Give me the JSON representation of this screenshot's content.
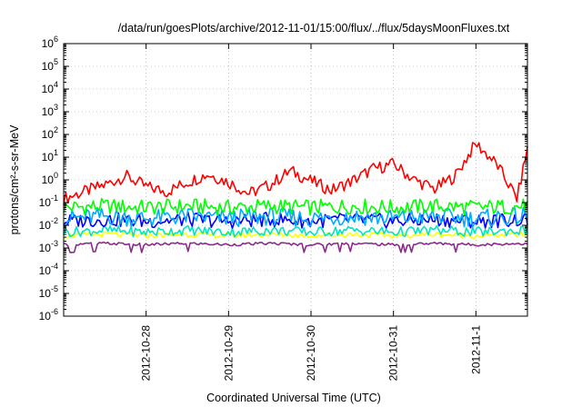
{
  "chart_data": {
    "type": "line",
    "title": "/data/run/goesPlots/archive/2012-11-01/15:00/flux/../flux/5daysMoonFluxes.txt",
    "xlabel": "Coordinated Universal Time (UTC)",
    "ylabel": "protons/cm²-s-sr-MeV",
    "y_scale": "log",
    "ylim_exponents": [
      -6,
      6
    ],
    "y_tick_base": "10",
    "y_tick_exponents": [
      "-6",
      "-5",
      "-4",
      "-3",
      "-2",
      "-1",
      "0",
      "1",
      "2",
      "3",
      "4",
      "5",
      "6"
    ],
    "x_range": [
      "2012-10-27 00:00",
      "2012-11-01 15:00"
    ],
    "x_ticks": [
      "2012-10-28",
      "2012-10-29",
      "2012-10-30",
      "2012-10-31",
      "2012-11-1"
    ],
    "grid": true,
    "series": [
      {
        "color": "#ff0000",
        "x": [
          "2012-10-27 00:00",
          "2012-10-27 06:00",
          "2012-10-27 12:00",
          "2012-10-27 18:00",
          "2012-10-28 00:00",
          "2012-10-28 06:00",
          "2012-10-28 12:00",
          "2012-10-28 18:00",
          "2012-10-29 00:00",
          "2012-10-29 06:00",
          "2012-10-29 12:00",
          "2012-10-29 18:00",
          "2012-10-30 00:00",
          "2012-10-30 06:00",
          "2012-10-30 12:00",
          "2012-10-30 18:00",
          "2012-10-31 00:00",
          "2012-10-31 06:00",
          "2012-10-31 12:00",
          "2012-10-31 18:00",
          "2012-11-01 00:00",
          "2012-11-01 06:00",
          "2012-11-01 12:00",
          "2012-11-01 15:00"
        ],
        "values": [
          0.15,
          0.3,
          0.6,
          1.5,
          0.5,
          0.3,
          0.8,
          1.8,
          0.8,
          0.25,
          0.6,
          2.5,
          0.9,
          0.35,
          0.9,
          3,
          5,
          1,
          0.4,
          1.5,
          40,
          5,
          0.15,
          25
        ]
      },
      {
        "color": "#00ff00",
        "x": [
          "2012-10-27 00:00",
          "2012-10-27 12:00",
          "2012-10-28 00:00",
          "2012-10-28 12:00",
          "2012-10-29 00:00",
          "2012-10-29 12:00",
          "2012-10-30 00:00",
          "2012-10-30 12:00",
          "2012-10-31 00:00",
          "2012-10-31 12:00",
          "2012-11-01 00:00",
          "2012-11-01 15:00"
        ],
        "values": [
          0.06,
          0.07,
          0.06,
          0.07,
          0.06,
          0.07,
          0.06,
          0.07,
          0.06,
          0.07,
          0.06,
          0.07
        ]
      },
      {
        "color": "#00aaff",
        "x": [
          "2012-10-27 00:00",
          "2012-10-27 12:00",
          "2012-10-28 00:00",
          "2012-10-28 12:00",
          "2012-10-29 00:00",
          "2012-10-29 12:00",
          "2012-10-30 00:00",
          "2012-10-30 12:00",
          "2012-10-31 00:00",
          "2012-10-31 12:00",
          "2012-11-01 00:00",
          "2012-11-01 15:00"
        ],
        "values": [
          0.02,
          0.025,
          0.02,
          0.025,
          0.02,
          0.025,
          0.02,
          0.025,
          0.02,
          0.025,
          0.02,
          0.025
        ]
      },
      {
        "color": "#0000ff",
        "x": [
          "2012-10-27 00:00",
          "2012-10-27 12:00",
          "2012-10-28 00:00",
          "2012-10-28 12:00",
          "2012-10-29 00:00",
          "2012-10-29 12:00",
          "2012-10-30 00:00",
          "2012-10-30 12:00",
          "2012-10-31 00:00",
          "2012-10-31 12:00",
          "2012-11-01 00:00",
          "2012-11-01 15:00"
        ],
        "values": [
          0.015,
          0.018,
          0.015,
          0.018,
          0.015,
          0.018,
          0.015,
          0.018,
          0.015,
          0.018,
          0.015,
          0.018
        ]
      },
      {
        "color": "#00e5c0",
        "x": [
          "2012-10-27 00:00",
          "2012-10-27 12:00",
          "2012-10-28 00:00",
          "2012-10-28 12:00",
          "2012-10-29 00:00",
          "2012-10-29 12:00",
          "2012-10-30 00:00",
          "2012-10-30 12:00",
          "2012-10-31 00:00",
          "2012-10-31 12:00",
          "2012-11-01 00:00",
          "2012-11-01 15:00"
        ],
        "values": [
          0.005,
          0.006,
          0.005,
          0.006,
          0.005,
          0.006,
          0.005,
          0.006,
          0.005,
          0.006,
          0.005,
          0.006
        ]
      },
      {
        "color": "#ffff00",
        "x": [
          "2012-10-27 00:00",
          "2012-10-27 12:00",
          "2012-10-28 00:00",
          "2012-10-28 12:00",
          "2012-10-29 00:00",
          "2012-10-29 12:00",
          "2012-10-30 00:00",
          "2012-10-30 12:00",
          "2012-10-31 00:00",
          "2012-10-31 12:00",
          "2012-11-01 00:00",
          "2012-11-01 15:00"
        ],
        "values": [
          0.0035,
          0.004,
          0.0035,
          0.004,
          0.0035,
          0.004,
          0.0035,
          0.004,
          0.0035,
          0.004,
          0.0035,
          0.004
        ]
      },
      {
        "color": "#8b2a8b",
        "x": [
          "2012-10-27 00:00",
          "2012-10-27 12:00",
          "2012-10-28 00:00",
          "2012-10-28 12:00",
          "2012-10-29 00:00",
          "2012-10-29 12:00",
          "2012-10-30 00:00",
          "2012-10-30 12:00",
          "2012-10-31 00:00",
          "2012-10-31 12:00",
          "2012-11-01 00:00",
          "2012-11-01 15:00"
        ],
        "values": [
          0.0014,
          0.0016,
          0.0014,
          0.0016,
          0.0014,
          0.0016,
          0.0014,
          0.0016,
          0.0014,
          0.0016,
          0.0014,
          0.0016
        ]
      }
    ]
  }
}
